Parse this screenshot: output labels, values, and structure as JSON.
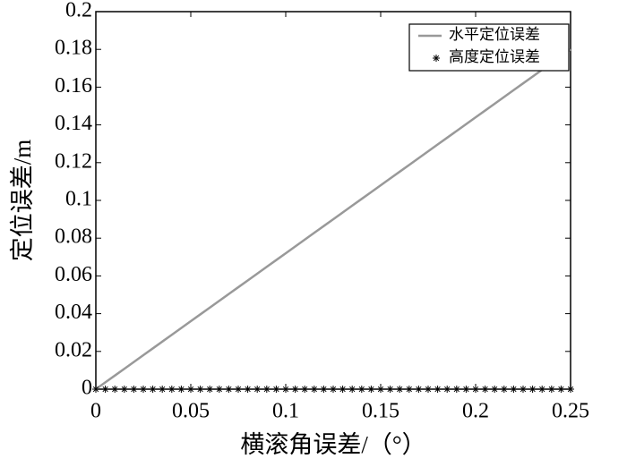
{
  "chart_data": {
    "type": "line",
    "xlabel": "横滚角误差/（°）",
    "ylabel": "定位误差/m",
    "x": [
      0,
      0.005,
      0.01,
      0.015,
      0.02,
      0.025,
      0.03,
      0.035,
      0.04,
      0.045,
      0.05,
      0.055,
      0.06,
      0.065,
      0.07,
      0.075,
      0.08,
      0.085,
      0.09,
      0.095,
      0.1,
      0.105,
      0.11,
      0.115,
      0.12,
      0.125,
      0.13,
      0.135,
      0.14,
      0.145,
      0.15,
      0.155,
      0.16,
      0.165,
      0.17,
      0.175,
      0.18,
      0.185,
      0.19,
      0.195,
      0.2,
      0.205,
      0.21,
      0.215,
      0.22,
      0.225,
      0.23,
      0.235,
      0.24,
      0.245,
      0.25
    ],
    "series": [
      {
        "name": "水平定位误差",
        "color": "#999999",
        "marker": "none",
        "values": [
          0,
          0.0036,
          0.0072,
          0.0108,
          0.0144,
          0.018,
          0.0216,
          0.0252,
          0.0288,
          0.0324,
          0.036,
          0.0396,
          0.0432,
          0.0468,
          0.0504,
          0.054,
          0.0576,
          0.0612,
          0.0648,
          0.0684,
          0.072,
          0.0756,
          0.0792,
          0.0828,
          0.0864,
          0.09,
          0.0936,
          0.0972,
          0.1008,
          0.1044,
          0.108,
          0.1116,
          0.1152,
          0.1188,
          0.1224,
          0.126,
          0.1296,
          0.1332,
          0.1368,
          0.1404,
          0.144,
          0.1476,
          0.1512,
          0.1548,
          0.1584,
          0.162,
          0.1656,
          0.1692,
          0.1728,
          0.1764,
          0.18
        ]
      },
      {
        "name": "高度定位误差",
        "color": "#000000",
        "marker": "asterisk",
        "values": [
          0,
          0,
          0,
          0,
          0,
          0,
          0,
          0,
          0,
          0,
          0,
          0,
          0,
          0,
          0,
          0,
          0,
          0,
          0,
          0,
          0,
          0,
          0,
          0,
          0,
          0,
          0,
          0,
          0,
          0,
          0,
          0,
          0,
          0,
          0,
          0,
          0,
          0,
          0,
          0,
          0,
          0,
          0,
          0,
          0,
          0,
          0,
          0,
          0,
          0,
          0
        ]
      }
    ],
    "xlim": [
      0,
      0.25
    ],
    "xticks": [
      0,
      0.05,
      0.1,
      0.15,
      0.2,
      0.25
    ],
    "ylim": [
      0,
      0.2
    ],
    "yticks": [
      0,
      0.02,
      0.04,
      0.06,
      0.08,
      0.1,
      0.12,
      0.14,
      0.16,
      0.18,
      0.2
    ],
    "legend": "upper right"
  }
}
